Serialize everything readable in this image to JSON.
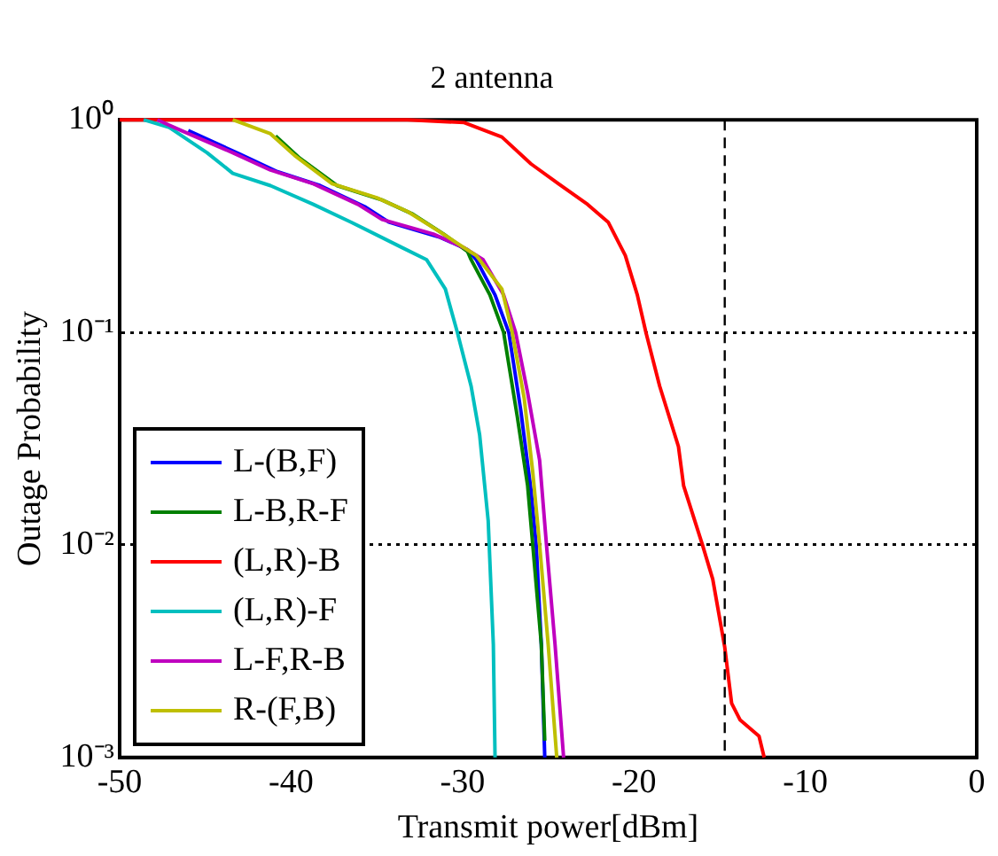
{
  "chart_data": {
    "type": "line",
    "title": "2 antenna",
    "xlabel": "Transmit power[dBm]",
    "ylabel": "Outage Probability",
    "xlim": [
      -50,
      0
    ],
    "xticks": [
      -50,
      -40,
      -30,
      -20,
      -10,
      0
    ],
    "ylim": [
      0.001,
      1
    ],
    "yticks": [
      {
        "value": 1,
        "label": "10⁰"
      },
      {
        "value": 0.1,
        "label": "10⁻¹"
      },
      {
        "value": 0.01,
        "label": "10⁻²"
      },
      {
        "value": 0.001,
        "label": "10⁻³"
      }
    ],
    "log": "y",
    "grid": "y",
    "legend": "bottom left",
    "marker": "none",
    "line_style": "solid",
    "ref_lines": [
      {
        "axis": "x",
        "value": -14.7,
        "color": "#000000",
        "line_style": "dashed"
      }
    ],
    "series": [
      {
        "name": "L-(B,F)",
        "color": "#0000ff",
        "x": [
          -46.0,
          -43.0,
          -40.8,
          -38.3,
          -35.7,
          -34.3,
          -31.3,
          -29.7,
          -29.2,
          -28.1,
          -27.3,
          -26.6,
          -26.0,
          -25.7,
          -25.4,
          -25.2
        ],
        "values": [
          0.89,
          0.69,
          0.57,
          0.49,
          0.39,
          0.33,
          0.28,
          0.245,
          0.22,
          0.15,
          0.1,
          0.043,
          0.018,
          0.01,
          0.0034,
          0.001
        ]
      },
      {
        "name": "L-B,R-F",
        "color": "#008000",
        "x": [
          -40.9,
          -39.5,
          -37.3,
          -34.7,
          -32.9,
          -31.1,
          -29.7,
          -29.5,
          -28.4,
          -27.6,
          -26.8,
          -26.2,
          -25.9,
          -25.4,
          -25.2
        ],
        "values": [
          0.84,
          0.66,
          0.49,
          0.42,
          0.36,
          0.29,
          0.24,
          0.22,
          0.15,
          0.1,
          0.04,
          0.019,
          0.01,
          0.0034,
          0.0012
        ]
      },
      {
        "name": "(L,R)-B",
        "color": "#ff0000",
        "x": [
          -50,
          -33.2,
          -29.9,
          -27.7,
          -26.0,
          -24.4,
          -22.7,
          -21.5,
          -20.5,
          -19.8,
          -19.3,
          -18.5,
          -17.4,
          -17.1,
          -16.0,
          -15.4,
          -14.7,
          -14.3,
          -13.8,
          -12.7,
          -12.4
        ],
        "values": [
          1,
          1,
          0.97,
          0.83,
          0.62,
          0.5,
          0.4,
          0.33,
          0.23,
          0.15,
          0.1,
          0.056,
          0.029,
          0.019,
          0.01,
          0.0069,
          0.0033,
          0.0018,
          0.0015,
          0.00126,
          0.001
        ]
      },
      {
        "name": "(L,R)-F",
        "color": "#00bfbf",
        "x": [
          -48.6,
          -47.1,
          -44.9,
          -43.4,
          -41.2,
          -38.7,
          -36.5,
          -33.5,
          -32.1,
          -31.0,
          -30.3,
          -29.5,
          -29.0,
          -28.5,
          -28.2,
          -28.1
        ],
        "values": [
          1,
          0.92,
          0.7,
          0.56,
          0.49,
          0.4,
          0.33,
          0.25,
          0.22,
          0.16,
          0.1,
          0.056,
          0.033,
          0.013,
          0.0034,
          0.001
        ]
      },
      {
        "name": "L-F,R-B",
        "color": "#bf00bf",
        "x": [
          -47.8,
          -46.4,
          -43.4,
          -41.2,
          -38.7,
          -36.1,
          -34.7,
          -31.7,
          -29.9,
          -28.8,
          -27.6,
          -26.9,
          -26.2,
          -25.5,
          -25.1,
          -24.6,
          -24.1
        ],
        "values": [
          1,
          0.89,
          0.7,
          0.58,
          0.5,
          0.4,
          0.34,
          0.29,
          0.25,
          0.22,
          0.15,
          0.1,
          0.052,
          0.025,
          0.01,
          0.0034,
          0.001
        ]
      },
      {
        "name": "R-(F,B)",
        "color": "#bfbf00",
        "x": [
          -43.4,
          -41.2,
          -39.8,
          -37.6,
          -35.0,
          -33.2,
          -31.4,
          -29.9,
          -29.2,
          -27.7,
          -27.1,
          -26.4,
          -25.9,
          -25.5,
          -25.0,
          -24.5
        ],
        "values": [
          1,
          0.86,
          0.68,
          0.5,
          0.43,
          0.37,
          0.3,
          0.25,
          0.23,
          0.16,
          0.1,
          0.049,
          0.022,
          0.01,
          0.0034,
          0.001
        ]
      }
    ]
  }
}
